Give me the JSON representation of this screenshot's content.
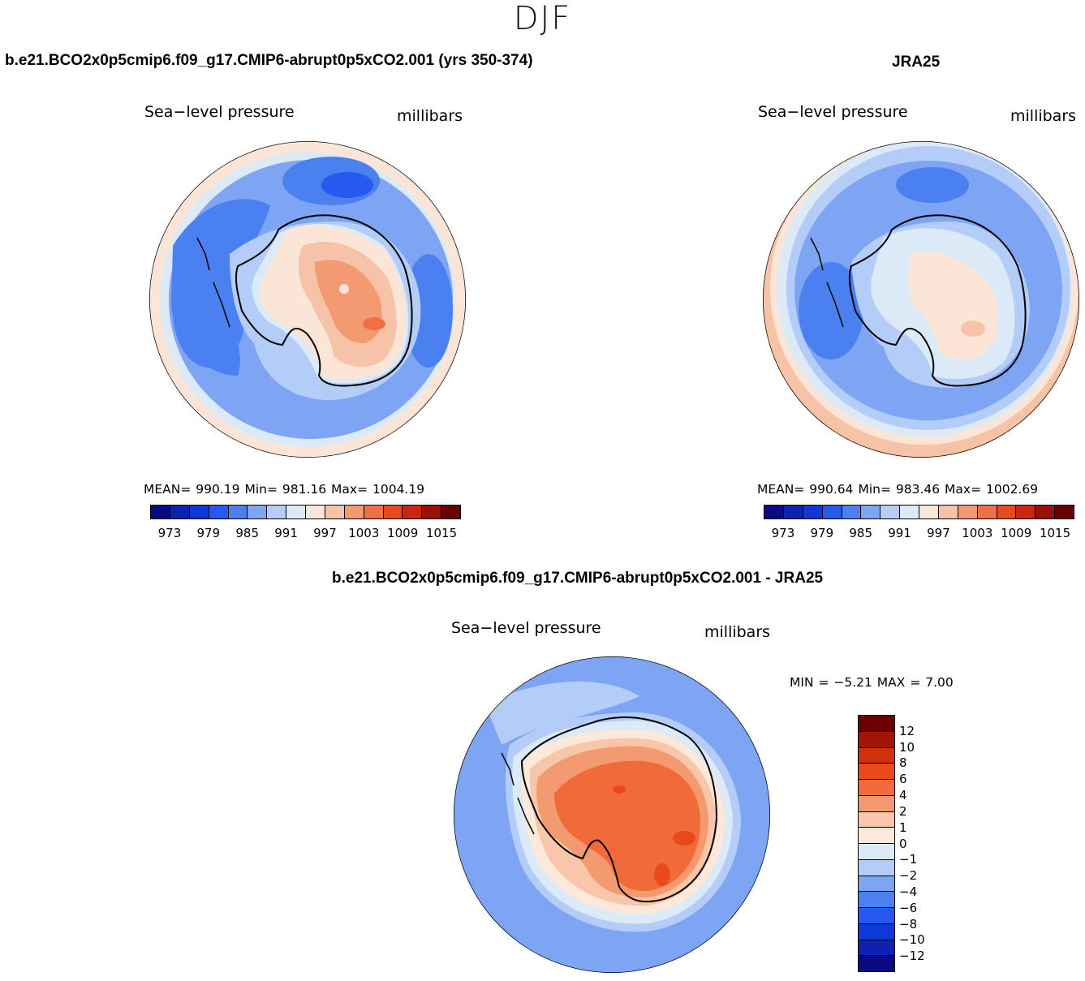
{
  "season": "DJF",
  "panels": {
    "model": {
      "title": "b.e21.BCO2x0p5cmip6.f09_g17.CMIP6-abrupt0p5xCO2.001 (yrs 350-374)",
      "field": "Sea−level pressure",
      "units": "millibars",
      "stats": "MEAN= 990.19   Min= 981.16   Max= 1004.19"
    },
    "obs": {
      "title": "JRA25",
      "field": "Sea−level pressure",
      "units": "millibars",
      "stats": "MEAN= 990.64   Min= 983.46   Max= 1002.69"
    },
    "diff": {
      "title": "b.e21.BCO2x0p5cmip6.f09_g17.CMIP6-abrupt0p5xCO2.001 - JRA25",
      "field": "Sea−level pressure",
      "units": "millibars",
      "stats": "MIN =   −5.21  MAX =    7.00"
    }
  },
  "colorbar_abs": {
    "colors": [
      "#0a0a82",
      "#0c22b0",
      "#1038d8",
      "#2659ee",
      "#4a80f0",
      "#7ea5f4",
      "#b3cdf8",
      "#dceaf8",
      "#fbe5d6",
      "#f7c3a6",
      "#f49a73",
      "#f06f44",
      "#e84a1f",
      "#c8280e",
      "#9a1008",
      "#6a0000"
    ],
    "ticks": [
      "973",
      "979",
      "985",
      "991",
      "997",
      "1003",
      "1009",
      "1015"
    ]
  },
  "colorbar_diff": {
    "colors": [
      "#6a0000",
      "#a01606",
      "#d0300c",
      "#ea4a1a",
      "#f06a3a",
      "#f49a70",
      "#f8c6a8",
      "#fde8da",
      "#dceaf8",
      "#b3cdf8",
      "#7ea5f4",
      "#4a80f0",
      "#2659ee",
      "#1038d8",
      "#0c22b0",
      "#0a0a82"
    ],
    "ticks": [
      "12",
      "10",
      "8",
      "6",
      "4",
      "2",
      "1",
      "0",
      "−1",
      "−2",
      "−4",
      "−6",
      "−8",
      "−10",
      "−12"
    ]
  }
}
